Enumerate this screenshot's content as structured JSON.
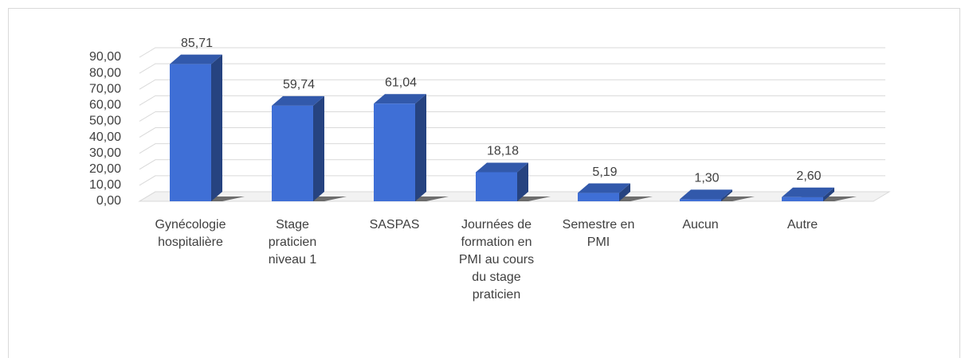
{
  "chart_data": {
    "type": "bar3d",
    "categories": [
      "Gynécologie hospitalière",
      "Stage praticien niveau 1",
      "SASPAS",
      "Journées de formation en PMI au cours du stage praticien",
      "Semestre en PMI",
      "Aucun",
      "Autre"
    ],
    "values": [
      85.71,
      59.74,
      61.04,
      18.18,
      5.19,
      1.3,
      2.6
    ],
    "value_labels": [
      "85,71",
      "59,74",
      "61,04",
      "18,18",
      "5,19",
      "1,30",
      "2,60"
    ],
    "color": "#3f6fd6",
    "ylim": [
      0,
      90
    ],
    "yticks": [
      {
        "value": 0,
        "label": "0,00"
      },
      {
        "value": 10,
        "label": "10,00"
      },
      {
        "value": 20,
        "label": "20,00"
      },
      {
        "value": 30,
        "label": "30,00"
      },
      {
        "value": 40,
        "label": "40,00"
      },
      {
        "value": 50,
        "label": "50,00"
      },
      {
        "value": 60,
        "label": "60,00"
      },
      {
        "value": 70,
        "label": "70,00"
      },
      {
        "value": 80,
        "label": "80,00"
      },
      {
        "value": 90,
        "label": "90,00"
      }
    ],
    "grid": true
  }
}
